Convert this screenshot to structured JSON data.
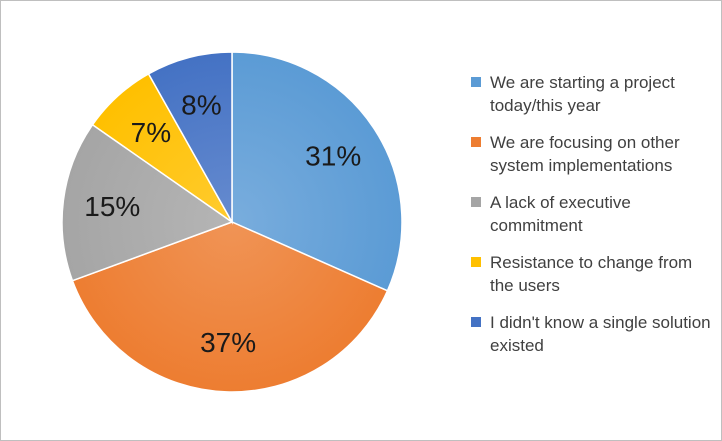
{
  "chart_data": {
    "type": "pie",
    "title": "",
    "legend_position": "right",
    "slices": [
      {
        "label": "We are starting a project today/this year",
        "value": 31,
        "display": "31%",
        "color": "#5B9BD5"
      },
      {
        "label": "We are focusing on other system implementations",
        "value": 37,
        "display": "37%",
        "color": "#ED7D31"
      },
      {
        "label": "A lack of executive commitment",
        "value": 15,
        "display": "15%",
        "color": "#A5A5A5"
      },
      {
        "label": "Resistance to change from the users",
        "value": 7,
        "display": "7%",
        "color": "#FFC000"
      },
      {
        "label": "I didn't know a single solution existed",
        "value": 8,
        "display": "8%",
        "color": "#4472C4"
      }
    ]
  }
}
